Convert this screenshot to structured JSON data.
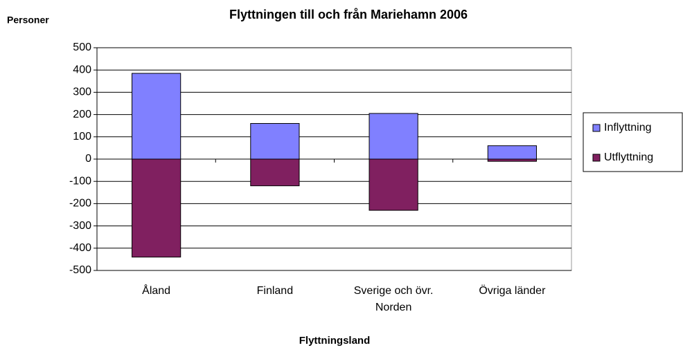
{
  "chart_data": {
    "type": "bar",
    "stacked": true,
    "title": "Flyttningen till och från Mariehamn 2006",
    "y_label": "Personer",
    "x_label": "Flyttningsland",
    "categories": [
      "Åland",
      "Finland",
      "Sverige och övr. Norden",
      "Övriga länder"
    ],
    "series": [
      {
        "name": "Inflyttning",
        "color": "#8080ff",
        "values": [
          385,
          160,
          205,
          60
        ]
      },
      {
        "name": "Utflyttning",
        "color": "#802060",
        "values": [
          -440,
          -120,
          -230,
          -10
        ]
      }
    ],
    "ylim": [
      -500,
      500
    ],
    "yticks": [
      -500,
      -400,
      -300,
      -200,
      -100,
      0,
      100,
      200,
      300,
      400,
      500
    ],
    "grid": true,
    "legend": "right"
  }
}
